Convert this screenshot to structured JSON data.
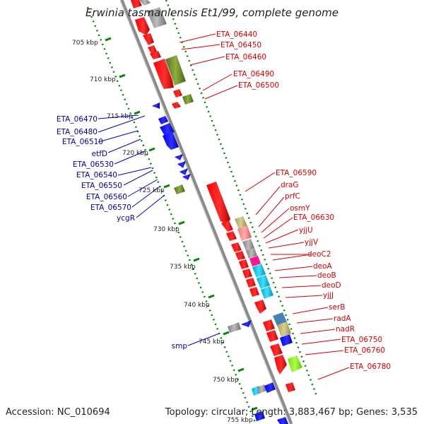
{
  "title": "Erwinia tasmaniensis Et1/99, complete genome",
  "footer": {
    "accession": "Accession: NC_010694",
    "topology": "Topology: circular; Length: 3,883,467 bp; Genes: 3,535"
  },
  "ticks": [
    "705 kbp",
    "710 kbp",
    "715 kbp",
    "720 kbp",
    "725 kbp",
    "730 kbp",
    "735 kbp",
    "740 kbp",
    "745 kbp",
    "750 kbp",
    "755 kbp"
  ],
  "left_labels": [
    "ETA_06470",
    "ETA_06480",
    "ETA_06510",
    "etfD",
    "ETA_06530",
    "ETA_06540",
    "ETA_06550",
    "ETA_06560",
    "ETA_06570",
    "ycgR",
    "smp"
  ],
  "right_labels": [
    "ETA_06440",
    "ETA_06450",
    "ETA_06460",
    "ETA_06490",
    "ETA_06500",
    "ETA_06590",
    "draG",
    "prfC",
    "osmY",
    "ETA_06630",
    "yjjU",
    "yjjV",
    "deoC2",
    "deoA",
    "deoB",
    "deoD",
    "yjjJ",
    "serB",
    "radA",
    "nadR",
    "ETA_06750",
    "ETA_06760",
    "ETA_06780"
  ],
  "colors": {
    "forward": "#ff0000",
    "reverse": "#0000ff",
    "label_forward": "#dd0000",
    "label_reverse": "#0000aa",
    "backbone": "#888888",
    "tick_dots": "#008800",
    "olive": "#6b8e23",
    "gray": "#999999",
    "pink": "#ff8080",
    "magenta": "#ff1493",
    "cyan": "#00bcd4",
    "khaki": "#bdb76b",
    "light_green": "#7cfc00"
  }
}
